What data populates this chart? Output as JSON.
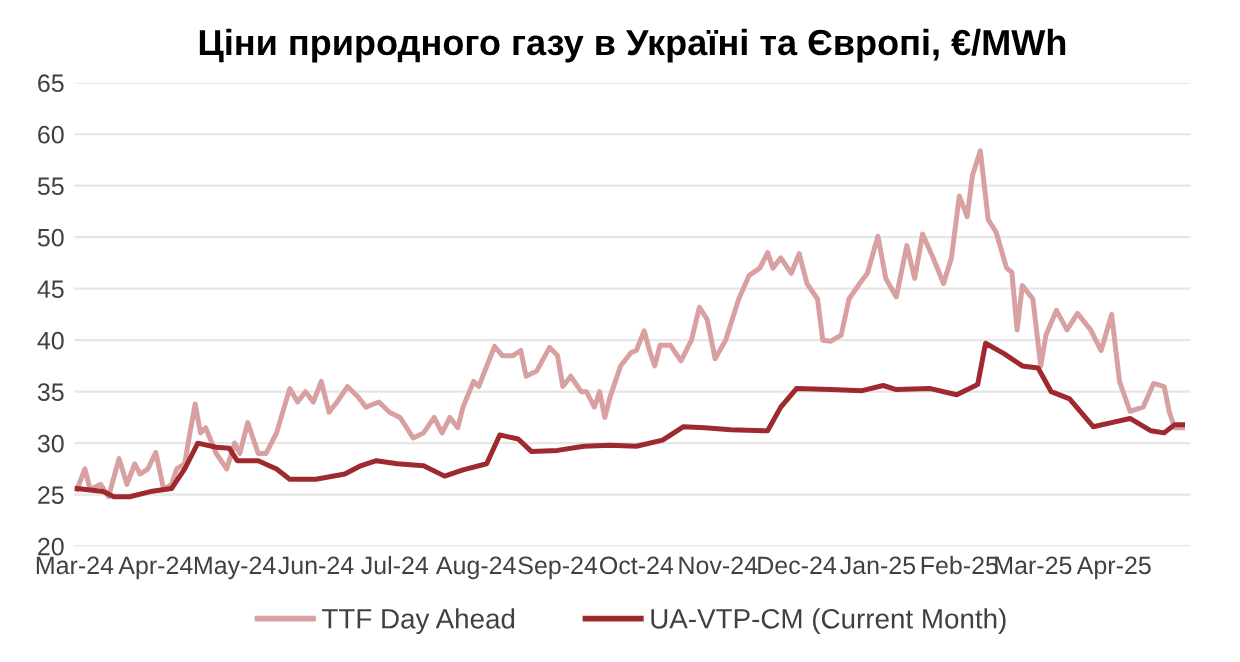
{
  "chart_data": {
    "type": "line",
    "title": "Ціни природного газу в Україні та Європі, €/MWh",
    "xlim": [
      "2024-03-01",
      "2025-04-30"
    ],
    "xticks": [
      {
        "value": "2024-03-01",
        "label": "Mar-24"
      },
      {
        "value": "2024-04-01",
        "label": "Apr-24"
      },
      {
        "value": "2024-05-01",
        "label": "May-24"
      },
      {
        "value": "2024-06-01",
        "label": "Jun-24"
      },
      {
        "value": "2024-07-01",
        "label": "Jul-24"
      },
      {
        "value": "2024-08-01",
        "label": "Aug-24"
      },
      {
        "value": "2024-09-01",
        "label": "Sep-24"
      },
      {
        "value": "2024-10-01",
        "label": "Oct-24"
      },
      {
        "value": "2024-11-01",
        "label": "Nov-24"
      },
      {
        "value": "2024-12-01",
        "label": "Dec-24"
      },
      {
        "value": "2025-01-01",
        "label": "Jan-25"
      },
      {
        "value": "2025-02-01",
        "label": "Feb-25"
      },
      {
        "value": "2025-03-01",
        "label": "Mar-25"
      },
      {
        "value": "2025-04-01",
        "label": "Apr-25"
      }
    ],
    "ylim": [
      20,
      65
    ],
    "yticks": [
      20,
      25,
      30,
      35,
      40,
      45,
      50,
      55,
      60,
      65
    ],
    "grid": "y",
    "legend": "bottom",
    "marker": "none",
    "line_style": "solid",
    "series": [
      {
        "name": "TTF Day Ahead",
        "color": "#d9a0a2",
        "x": [
          "2024-03-02",
          "2024-03-05",
          "2024-03-07",
          "2024-03-11",
          "2024-03-14",
          "2024-03-18",
          "2024-03-21",
          "2024-03-24",
          "2024-03-26",
          "2024-03-29",
          "2024-04-01",
          "2024-04-04",
          "2024-04-07",
          "2024-04-09",
          "2024-04-12",
          "2024-04-14",
          "2024-04-16",
          "2024-04-18",
          "2024-04-20",
          "2024-04-24",
          "2024-04-28",
          "2024-05-01",
          "2024-05-03",
          "2024-05-06",
          "2024-05-10",
          "2024-05-13",
          "2024-05-17",
          "2024-05-22",
          "2024-05-25",
          "2024-05-28",
          "2024-05-31",
          "2024-06-03",
          "2024-06-06",
          "2024-06-09",
          "2024-06-13",
          "2024-06-17",
          "2024-06-20",
          "2024-06-25",
          "2024-06-29",
          "2024-07-03",
          "2024-07-08",
          "2024-07-12",
          "2024-07-16",
          "2024-07-19",
          "2024-07-22",
          "2024-07-25",
          "2024-07-27",
          "2024-07-31",
          "2024-08-02",
          "2024-08-08",
          "2024-08-11",
          "2024-08-15",
          "2024-08-18",
          "2024-08-20",
          "2024-08-24",
          "2024-08-29",
          "2024-09-01",
          "2024-09-03",
          "2024-09-06",
          "2024-09-10",
          "2024-09-12",
          "2024-09-15",
          "2024-09-17",
          "2024-09-19",
          "2024-09-21",
          "2024-09-25",
          "2024-09-29",
          "2024-10-01",
          "2024-10-04",
          "2024-10-06",
          "2024-10-08",
          "2024-10-10",
          "2024-10-14",
          "2024-10-18",
          "2024-10-22",
          "2024-10-25",
          "2024-10-28",
          "2024-10-31",
          "2024-11-04",
          "2024-11-09",
          "2024-11-13",
          "2024-11-17",
          "2024-11-20",
          "2024-11-22",
          "2024-11-25",
          "2024-11-29",
          "2024-12-02",
          "2024-12-05",
          "2024-12-09",
          "2024-12-11",
          "2024-12-14",
          "2024-12-18",
          "2024-12-21",
          "2024-12-25",
          "2024-12-28",
          "2025-01-01",
          "2025-01-04",
          "2025-01-08",
          "2025-01-12",
          "2025-01-15",
          "2025-01-18",
          "2025-01-22",
          "2025-01-26",
          "2025-01-29",
          "2025-02-01",
          "2025-02-04",
          "2025-02-06",
          "2025-02-09",
          "2025-02-12",
          "2025-02-15",
          "2025-02-19",
          "2025-02-21",
          "2025-02-23",
          "2025-02-25",
          "2025-03-01",
          "2025-03-04",
          "2025-03-06",
          "2025-03-10",
          "2025-03-14",
          "2025-03-18",
          "2025-03-23",
          "2025-03-27",
          "2025-03-31",
          "2025-04-03",
          "2025-04-07",
          "2025-04-12",
          "2025-04-16",
          "2025-04-20",
          "2025-04-22",
          "2025-04-24",
          "2025-04-27"
        ],
        "values": [
          25.5,
          27.5,
          25.5,
          26,
          24.8,
          28.5,
          26,
          28,
          27,
          27.5,
          29.1,
          25.5,
          26,
          27.5,
          28,
          31,
          33.8,
          31,
          31.5,
          29,
          27.5,
          30,
          29,
          32,
          29,
          29,
          31,
          35.3,
          34,
          35,
          34,
          36,
          33,
          34,
          35.5,
          34.5,
          33.5,
          34,
          33,
          32.5,
          30.5,
          31,
          32.5,
          31,
          32.5,
          31.5,
          33.5,
          36,
          35.5,
          39.4,
          38.5,
          38.5,
          39,
          36.5,
          37,
          39.3,
          38.5,
          35.5,
          36.5,
          35,
          35,
          33.5,
          35,
          32.5,
          34.5,
          37.5,
          38.8,
          39,
          40.9,
          39,
          37.5,
          39.5,
          39.5,
          38,
          40,
          43.2,
          42,
          38.2,
          40,
          44,
          46.3,
          47,
          48.5,
          47,
          48,
          46.5,
          48.4,
          45.5,
          44,
          40,
          39.9,
          40.5,
          44,
          45.5,
          46.5,
          50.1,
          46,
          44.2,
          49.2,
          46,
          50.3,
          48,
          45.5,
          48,
          54,
          52,
          56,
          58.4,
          51.7,
          50.5,
          47,
          46.6,
          41,
          45.3,
          44,
          37.5,
          40.5,
          42.9,
          41,
          42.6,
          41,
          39,
          42.5,
          36,
          33.1,
          33.5,
          35.8,
          35.5,
          33,
          31.5,
          31.5
        ]
      },
      {
        "name": "UA-VTP-CM (Current Month)",
        "color": "#9e2a2f",
        "x": [
          "2024-03-02",
          "2024-03-12",
          "2024-03-16",
          "2024-03-22",
          "2024-03-30",
          "2024-04-07",
          "2024-04-12",
          "2024-04-17",
          "2024-04-24",
          "2024-04-29",
          "2024-05-02",
          "2024-05-10",
          "2024-05-17",
          "2024-05-22",
          "2024-06-01",
          "2024-06-12",
          "2024-06-18",
          "2024-06-24",
          "2024-07-02",
          "2024-07-12",
          "2024-07-20",
          "2024-07-27",
          "2024-08-05",
          "2024-08-10",
          "2024-08-17",
          "2024-08-22",
          "2024-09-01",
          "2024-09-11",
          "2024-09-21",
          "2024-10-01",
          "2024-10-11",
          "2024-10-19",
          "2024-10-27",
          "2024-11-06",
          "2024-11-20",
          "2024-11-25",
          "2024-12-01",
          "2024-12-14",
          "2024-12-26",
          "2025-01-03",
          "2025-01-08",
          "2025-01-21",
          "2025-01-31",
          "2025-02-08",
          "2025-02-11",
          "2025-02-18",
          "2025-02-25",
          "2025-03-03",
          "2025-03-08",
          "2025-03-15",
          "2025-03-24",
          "2025-03-31",
          "2025-04-07",
          "2025-04-15",
          "2025-04-20",
          "2025-04-24",
          "2025-04-27"
        ],
        "values": [
          25.6,
          25.3,
          24.8,
          24.8,
          25.3,
          25.6,
          27.5,
          30,
          29.6,
          29.5,
          28.3,
          28.3,
          27.5,
          26.5,
          26.5,
          27,
          27.8,
          28.3,
          28,
          27.8,
          26.8,
          27.4,
          28,
          30.8,
          30.4,
          29.2,
          29.3,
          29.7,
          29.8,
          29.7,
          30.3,
          31.6,
          31.5,
          31.3,
          31.2,
          33.5,
          35.3,
          35.2,
          35.1,
          35.6,
          35.2,
          35.3,
          34.7,
          35.7,
          39.7,
          38.7,
          37.5,
          37.3,
          35,
          34.3,
          31.6,
          32,
          32.4,
          31.2,
          31,
          31.8,
          31.8
        ]
      }
    ]
  }
}
